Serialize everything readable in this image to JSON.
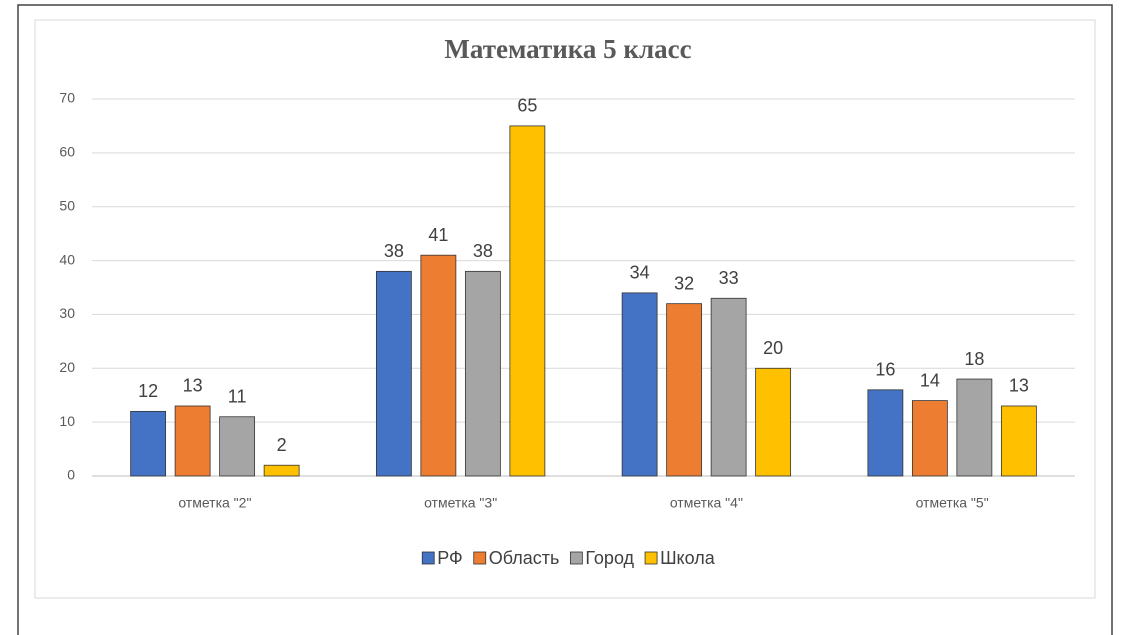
{
  "chart_data": {
    "type": "bar",
    "title": "Математика 5 класс",
    "categories": [
      "отметка \"2\"",
      "отметка \"3\"",
      "отметка \"4\"",
      "отметка \"5\""
    ],
    "series": [
      {
        "name": "РФ",
        "color": "#4472c4",
        "values": [
          12,
          38,
          34,
          16
        ]
      },
      {
        "name": "Область",
        "color": "#ed7d31",
        "values": [
          13,
          41,
          32,
          14
        ]
      },
      {
        "name": "Город",
        "color": "#a5a5a5",
        "values": [
          11,
          38,
          33,
          18
        ]
      },
      {
        "name": "Школа",
        "color": "#ffc000",
        "values": [
          2,
          65,
          20,
          13
        ]
      }
    ],
    "ylim": [
      0,
      70
    ],
    "yticks": [
      0,
      10,
      20,
      30,
      40,
      50,
      60,
      70
    ],
    "grid": true,
    "legend": "bottom"
  }
}
